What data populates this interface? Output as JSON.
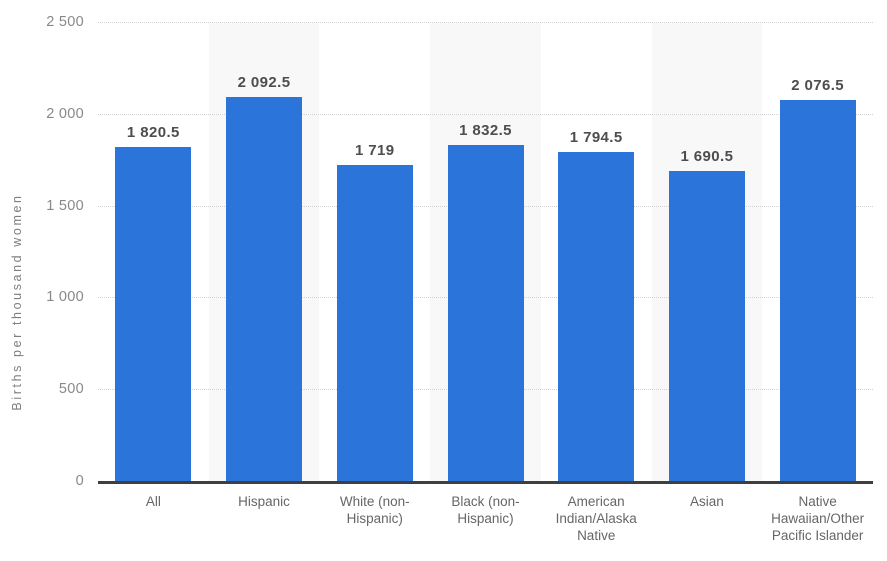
{
  "colors": {
    "bar": "#2a74da",
    "column_stripe": "#f8f8f8",
    "gridline": "#d2d2d2",
    "axis_line": "#3f3f3f",
    "value_label": "#4d4d4d",
    "tick_label": "#898989",
    "category_label": "#666666",
    "y_title": "#7d7d7d",
    "background": "#ffffff"
  },
  "chart_data": {
    "type": "bar",
    "title": "",
    "xlabel": "",
    "ylabel": "Births per thousand women",
    "ylim": [
      0,
      2500
    ],
    "grid": "horizontal-dotted",
    "legend": "none",
    "categories": [
      "All",
      "Hispanic",
      "White (non-Hispanic)",
      "Black (non-Hispanic)",
      "American Indian/Alaska Native",
      "Asian",
      "Native Hawaiian/Other Pacific Islander"
    ],
    "category_label_lines": [
      [
        "All"
      ],
      [
        "Hispanic"
      ],
      [
        "White (non-",
        "Hispanic)"
      ],
      [
        "Black (non-",
        "Hispanic)"
      ],
      [
        "American",
        "Indian/Alaska",
        "Native"
      ],
      [
        "Asian"
      ],
      [
        "Native",
        "Hawaiian/Other",
        "Pacific Islander"
      ]
    ],
    "values": [
      1820.5,
      2092.5,
      1719,
      1832.5,
      1794.5,
      1690.5,
      2076.5
    ],
    "value_labels": [
      "1 820.5",
      "2 092.5",
      "1 719",
      "1 832.5",
      "1 794.5",
      "1 690.5",
      "2 076.5"
    ],
    "striped_category_indexes": [
      1,
      3,
      5
    ],
    "y_ticks": [
      {
        "value": 0,
        "label": "0"
      },
      {
        "value": 500,
        "label": "500"
      },
      {
        "value": 1000,
        "label": "1 000"
      },
      {
        "value": 1500,
        "label": "1 500"
      },
      {
        "value": 2000,
        "label": "2 000"
      },
      {
        "value": 2500,
        "label": "2 500"
      }
    ]
  }
}
